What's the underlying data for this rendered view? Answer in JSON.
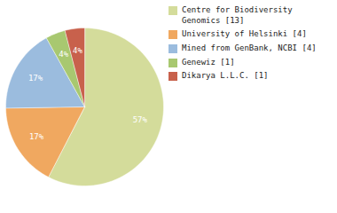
{
  "chart_data": {
    "type": "pie",
    "categories": [
      "Centre for Biodiversity\nGenomics [13]",
      "University of Helsinki [4]",
      "Mined from GenBank, NCBI [4]",
      "Genewiz [1]",
      "Dikarya L.L.C. [1]"
    ],
    "values": [
      57,
      17,
      17,
      4,
      4
    ],
    "value_labels": [
      "57%",
      "17%",
      "17%",
      "4%",
      "4%"
    ],
    "colors": [
      "#d4dc9b",
      "#f0a860",
      "#9bbcde",
      "#a8c870",
      "#c8614c"
    ],
    "data_labels": true,
    "legend": "right"
  }
}
